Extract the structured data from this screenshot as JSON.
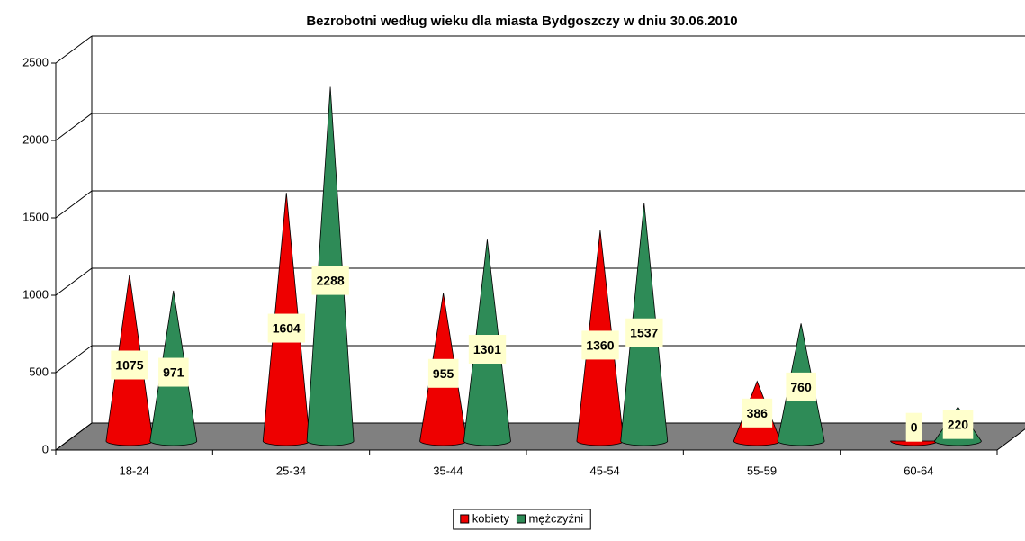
{
  "chart_data": {
    "type": "cone",
    "title": "Bezrobotni według wieku dla miasta Bydgoszczy w dniu 30.06.2010",
    "categories": [
      "18-24",
      "25-34",
      "35-44",
      "45-54",
      "55-59",
      "60-64"
    ],
    "series": [
      {
        "name": "kobiety",
        "color": "#ee0000",
        "values": [
          1075,
          1604,
          955,
          1360,
          386,
          0
        ]
      },
      {
        "name": "mężczyźni",
        "color": "#2e8b57",
        "values": [
          971,
          2288,
          1301,
          1537,
          760,
          220
        ]
      }
    ],
    "ylim": [
      0,
      2500
    ],
    "yticks": [
      0,
      500,
      1000,
      1500,
      2000,
      2500
    ],
    "grid": true,
    "legend": "bottom"
  }
}
